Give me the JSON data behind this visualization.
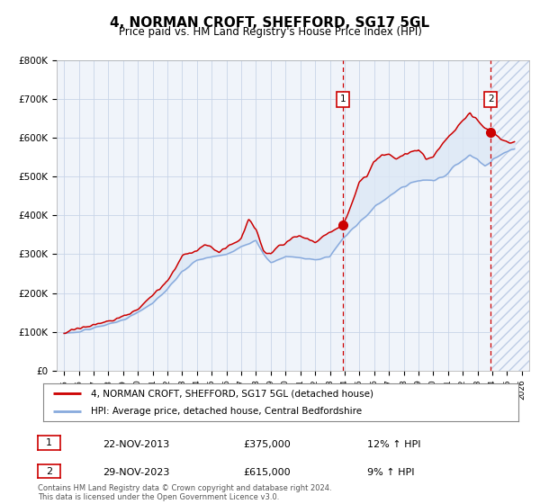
{
  "title": "4, NORMAN CROFT, SHEFFORD, SG17 5GL",
  "subtitle": "Price paid vs. HM Land Registry's House Price Index (HPI)",
  "ylim": [
    0,
    800000
  ],
  "yticks": [
    0,
    100000,
    200000,
    300000,
    400000,
    500000,
    600000,
    700000,
    800000
  ],
  "ytick_labels": [
    "£0",
    "£100K",
    "£200K",
    "£300K",
    "£400K",
    "£500K",
    "£600K",
    "£700K",
    "£800K"
  ],
  "xlim_start": 1994.5,
  "xlim_end": 2026.5,
  "sale1_year": 2013.9,
  "sale1_price": 375000,
  "sale1_label": "22-NOV-2013",
  "sale1_amount": "£375,000",
  "sale1_hpi": "12% ↑ HPI",
  "sale2_year": 2023.9,
  "sale2_price": 615000,
  "sale2_label": "29-NOV-2023",
  "sale2_amount": "£615,000",
  "sale2_hpi": "9% ↑ HPI",
  "line_color_property": "#cc0000",
  "line_color_hpi": "#88aadd",
  "fill_color": "#dde8f5",
  "background_color": "#f0f4fa",
  "grid_color": "#c8d4e8",
  "legend_label_property": "4, NORMAN CROFT, SHEFFORD, SG17 5GL (detached house)",
  "legend_label_hpi": "HPI: Average price, detached house, Central Bedfordshire",
  "footer": "Contains HM Land Registry data © Crown copyright and database right 2024.\nThis data is licensed under the Open Government Licence v3.0.",
  "title_fontsize": 11,
  "subtitle_fontsize": 9
}
